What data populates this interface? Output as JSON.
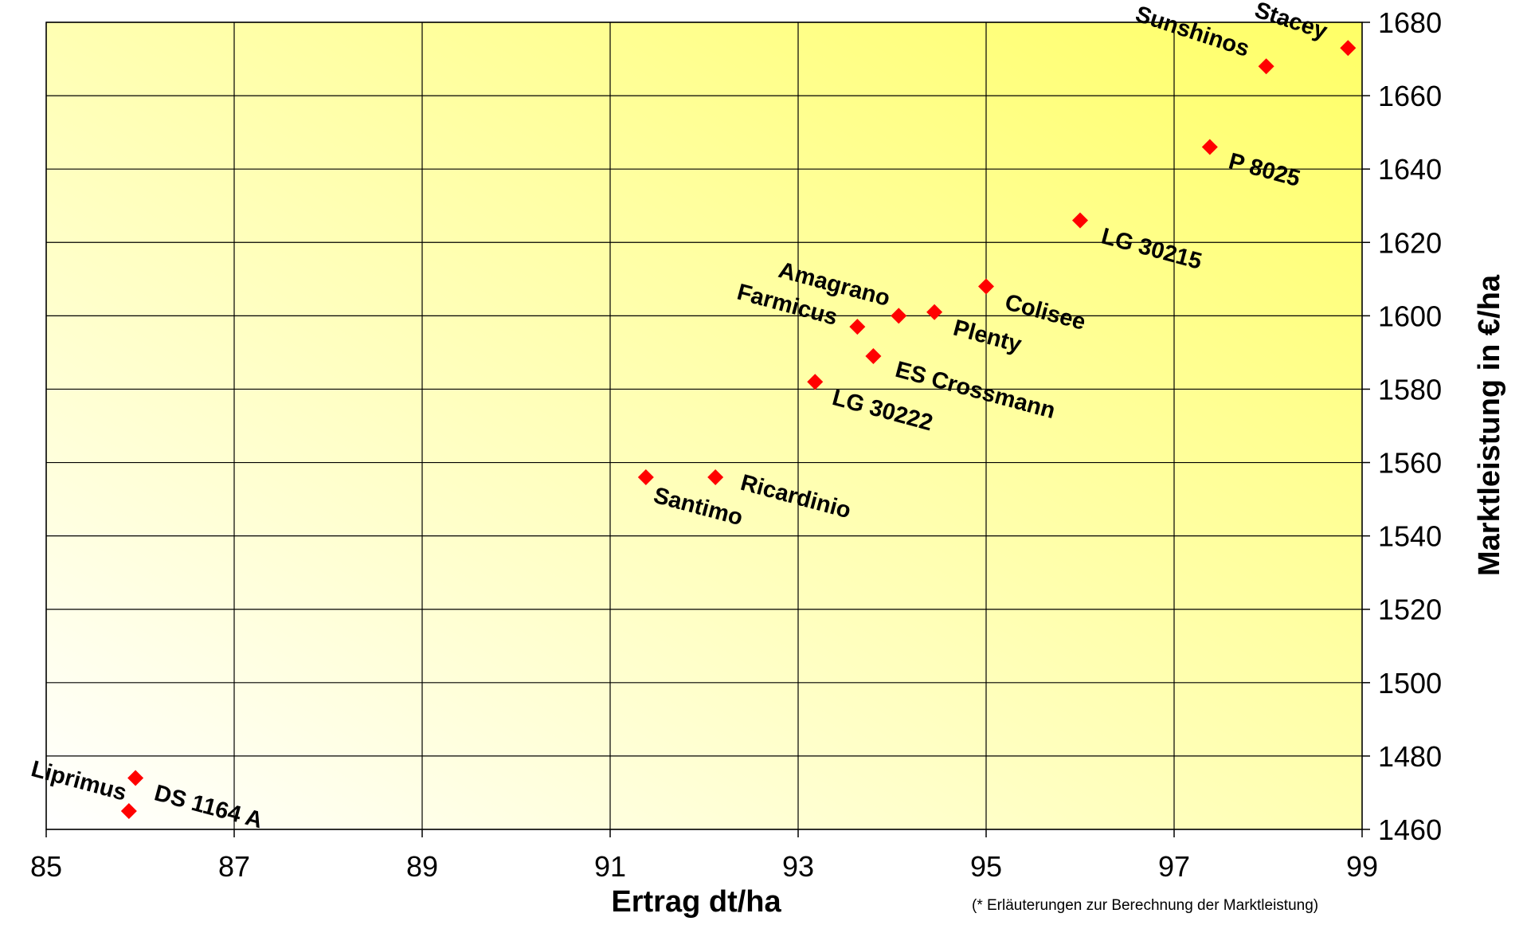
{
  "chart_data": {
    "type": "scatter",
    "title": "",
    "xlabel": "Ertrag dt/ha",
    "ylabel": "Marktleistung in €/ha",
    "xlim": [
      85,
      99
    ],
    "ylim": [
      1460,
      1680
    ],
    "x_ticks": [
      "85",
      "87",
      "89",
      "91",
      "93",
      "95",
      "97",
      "99"
    ],
    "y_ticks": [
      "1460",
      "1480",
      "1500",
      "1520",
      "1540",
      "1560",
      "1580",
      "1600",
      "1620",
      "1640",
      "1660",
      "1680"
    ],
    "grid": true,
    "marker_color": "#ff0000",
    "background_gradient": [
      "#ffffff",
      "#ffff66"
    ],
    "points": [
      {
        "label": "Stacey",
        "x": 98.85,
        "y": 1673
      },
      {
        "label": "Sunshinos",
        "x": 97.98,
        "y": 1668
      },
      {
        "label": "P 8025",
        "x": 97.38,
        "y": 1646
      },
      {
        "label": "LG 30215",
        "x": 96.0,
        "y": 1626
      },
      {
        "label": "Colisee",
        "x": 95.0,
        "y": 1608
      },
      {
        "label": "Plenty",
        "x": 94.45,
        "y": 1601
      },
      {
        "label": "Amagrano",
        "x": 94.07,
        "y": 1600
      },
      {
        "label": "Farmicus",
        "x": 93.63,
        "y": 1597
      },
      {
        "label": "ES Crossmann",
        "x": 93.8,
        "y": 1589
      },
      {
        "label": "LG 30222",
        "x": 93.18,
        "y": 1582
      },
      {
        "label": "Ricardinio",
        "x": 92.12,
        "y": 1556
      },
      {
        "label": "Santimo",
        "x": 91.38,
        "y": 1556
      },
      {
        "label": "DS 1164 A",
        "x": 85.95,
        "y": 1474
      },
      {
        "label": "Liprimus",
        "x": 85.88,
        "y": 1465
      }
    ]
  },
  "footnote": "(* Erläuterungen  zur  Berechnung  der  Marktleistung)"
}
